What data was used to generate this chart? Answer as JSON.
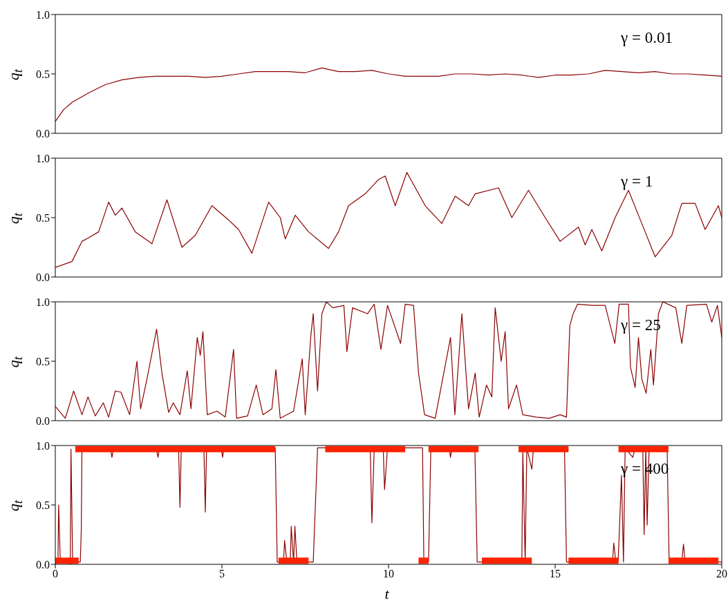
{
  "chart_data": [
    {
      "type": "line",
      "ylabel": "q$_{t}$",
      "annotations": [
        "γ = 0.01"
      ],
      "xlim": [
        0,
        20
      ],
      "xticks": [
        0,
        5,
        10,
        15,
        20
      ],
      "ylim": [
        0,
        1
      ],
      "yticks": [
        {
          "value": 0,
          "label": "0.0"
        },
        {
          "value": 0.5,
          "label": "0.5"
        },
        {
          "value": 1,
          "label": "1.0"
        }
      ],
      "tick_labels": "y",
      "x": [
        0,
        0.25,
        0.5,
        1,
        1.5,
        2,
        2.5,
        3,
        3.5,
        4,
        4.5,
        5,
        5.5,
        6,
        6.5,
        7,
        7.5,
        8,
        8.5,
        9,
        9.5,
        10,
        10.5,
        11,
        11.5,
        12,
        12.5,
        13,
        13.5,
        14,
        14.5,
        15,
        15.5,
        16,
        16.5,
        17,
        17.5,
        18,
        18.5,
        19,
        19.5,
        20
      ],
      "series": [
        {
          "color": "#8b0000",
          "values": [
            0.1,
            0.2,
            0.26,
            0.34,
            0.41,
            0.45,
            0.47,
            0.48,
            0.48,
            0.48,
            0.47,
            0.48,
            0.5,
            0.52,
            0.52,
            0.52,
            0.51,
            0.55,
            0.52,
            0.52,
            0.53,
            0.5,
            0.48,
            0.48,
            0.48,
            0.5,
            0.5,
            0.49,
            0.5,
            0.49,
            0.47,
            0.49,
            0.49,
            0.5,
            0.53,
            0.52,
            0.51,
            0.52,
            0.5,
            0.5,
            0.49,
            0.48
          ]
        }
      ]
    },
    {
      "type": "line",
      "ylabel": "q$_{t}$",
      "annotations": [
        "γ = 1"
      ],
      "xlim": [
        0,
        20
      ],
      "xticks": [
        0,
        5,
        10,
        15,
        20
      ],
      "ylim": [
        0,
        1
      ],
      "yticks": [
        {
          "value": 0,
          "label": "0.0"
        },
        {
          "value": 0.5,
          "label": "0.5"
        },
        {
          "value": 1,
          "label": "1.0"
        }
      ],
      "tick_labels": "y",
      "x": [
        0,
        0.5,
        0.8,
        1,
        1.3,
        1.6,
        1.8,
        2.0,
        2.4,
        2.9,
        3.35,
        3.8,
        4.2,
        4.7,
        5.2,
        5.5,
        5.9,
        6.4,
        6.75,
        6.9,
        7.2,
        7.6,
        8.2,
        8.5,
        8.8,
        9.3,
        9.7,
        9.9,
        10.2,
        10.55,
        11.1,
        11.6,
        12,
        12.4,
        12.6,
        13.3,
        13.7,
        14.2,
        14.7,
        15.15,
        15.7,
        15.9,
        16.1,
        16.4,
        16.8,
        17.2,
        17.6,
        18,
        18.5,
        18.8,
        19.2,
        19.5,
        19.9,
        20
      ],
      "series": [
        {
          "color": "#8b0000",
          "values": [
            0.08,
            0.13,
            0.3,
            0.33,
            0.38,
            0.63,
            0.52,
            0.58,
            0.38,
            0.28,
            0.65,
            0.25,
            0.35,
            0.6,
            0.48,
            0.4,
            0.2,
            0.63,
            0.5,
            0.32,
            0.52,
            0.38,
            0.24,
            0.38,
            0.6,
            0.7,
            0.82,
            0.85,
            0.6,
            0.88,
            0.6,
            0.45,
            0.68,
            0.6,
            0.7,
            0.75,
            0.5,
            0.73,
            0.5,
            0.3,
            0.42,
            0.27,
            0.4,
            0.22,
            0.5,
            0.73,
            0.45,
            0.17,
            0.35,
            0.62,
            0.62,
            0.4,
            0.6,
            0.5
          ]
        }
      ]
    },
    {
      "type": "line",
      "ylabel": "q$_{t}$",
      "annotations": [
        "γ = 25"
      ],
      "xlim": [
        0,
        20
      ],
      "xticks": [
        0,
        5,
        10,
        15,
        20
      ],
      "ylim": [
        0,
        1
      ],
      "yticks": [
        {
          "value": 0,
          "label": "0.0"
        },
        {
          "value": 0.5,
          "label": "0.5"
        },
        {
          "value": 1,
          "label": "1.0"
        }
      ],
      "tick_labels": "y",
      "x": [
        0,
        0.3,
        0.55,
        0.8,
        0.98,
        1.2,
        1.44,
        1.6,
        1.8,
        1.97,
        2.23,
        2.45,
        2.56,
        2.75,
        3.04,
        3.2,
        3.4,
        3.54,
        3.74,
        3.96,
        4.07,
        4.26,
        4.35,
        4.43,
        4.56,
        4.85,
        5.1,
        5.35,
        5.44,
        5.77,
        6.03,
        6.23,
        6.5,
        6.62,
        6.75,
        7.15,
        7.41,
        7.5,
        7.67,
        7.74,
        7.87,
        8,
        8.13,
        8.33,
        8.66,
        8.75,
        8.92,
        9.37,
        9.57,
        9.77,
        9.97,
        10.36,
        10.5,
        10.75,
        10.9,
        11.08,
        11.4,
        11.86,
        11.99,
        12.2,
        12.4,
        12.6,
        12.72,
        12.94,
        13.1,
        13.2,
        13.38,
        13.5,
        13.6,
        13.84,
        14.03,
        14.43,
        14.82,
        15.15,
        15.34,
        15.44,
        15.54,
        15.67,
        16.13,
        16.5,
        16.79,
        16.92,
        17.2,
        17.26,
        17.4,
        17.5,
        17.6,
        17.73,
        17.87,
        17.95,
        18.1,
        18.23,
        18.62,
        18.8,
        18.95,
        19.54,
        19.7,
        19.87,
        20
      ],
      "series": [
        {
          "color": "#8b0000",
          "values": [
            0.12,
            0.02,
            0.25,
            0.05,
            0.2,
            0.04,
            0.15,
            0.03,
            0.25,
            0.24,
            0.05,
            0.5,
            0.1,
            0.35,
            0.77,
            0.4,
            0.07,
            0.15,
            0.05,
            0.42,
            0.1,
            0.7,
            0.55,
            0.75,
            0.05,
            0.08,
            0.03,
            0.6,
            0.02,
            0.04,
            0.3,
            0.05,
            0.1,
            0.43,
            0.02,
            0.08,
            0.52,
            0.05,
            0.72,
            0.9,
            0.25,
            0.9,
            1.0,
            0.95,
            0.97,
            0.58,
            0.95,
            0.9,
            0.98,
            0.6,
            0.97,
            0.65,
            0.98,
            0.97,
            0.4,
            0.05,
            0.02,
            0.7,
            0.05,
            0.9,
            0.1,
            0.4,
            0.03,
            0.3,
            0.2,
            0.95,
            0.5,
            0.75,
            0.1,
            0.3,
            0.05,
            0.03,
            0.02,
            0.05,
            0.03,
            0.8,
            0.9,
            0.98,
            0.97,
            0.97,
            0.65,
            0.98,
            0.98,
            0.45,
            0.28,
            0.7,
            0.35,
            0.23,
            0.6,
            0.3,
            0.9,
            1.0,
            0.95,
            0.65,
            0.97,
            0.98,
            0.83,
            0.97,
            0.7
          ]
        }
      ]
    },
    {
      "type": "line",
      "ylabel": "q$_{t}$",
      "xlabel": "t",
      "annotations": [
        "γ = 400"
      ],
      "xlim": [
        0,
        20
      ],
      "xticks": [
        0,
        5,
        10,
        15,
        20
      ],
      "ylim": [
        0,
        1
      ],
      "yticks": [
        {
          "value": 0,
          "label": "0.0"
        },
        {
          "value": 0.5,
          "label": "0.5"
        },
        {
          "value": 1,
          "label": "1.0"
        }
      ],
      "x": [
        0,
        0.08,
        0.1,
        0.15,
        0.42,
        0.45,
        0.47,
        0.52,
        0.75,
        0.78,
        0.8,
        1.65,
        1.7,
        1.75,
        3.03,
        3.08,
        3.13,
        3.7,
        3.74,
        3.78,
        4.46,
        4.5,
        4.54,
        4.98,
        5.02,
        5.06,
        6.6,
        6.66,
        6.85,
        6.88,
        6.95,
        7.05,
        7.08,
        7.15,
        7.19,
        7.25,
        7.74,
        7.87,
        9.45,
        9.5,
        9.57,
        9.84,
        9.88,
        9.97,
        11.02,
        11.06,
        11.2,
        11.27,
        11.82,
        11.86,
        11.9,
        12.59,
        12.66,
        14.0,
        14.03,
        14.1,
        14.15,
        14.3,
        14.35,
        15.28,
        15.34,
        16.72,
        16.76,
        16.82,
        16.89,
        16.99,
        17.05,
        17.1,
        17.33,
        17.4,
        17.63,
        17.67,
        17.72,
        17.76,
        17.82,
        17.9,
        18.36,
        18.42,
        18.8,
        18.85,
        18.9,
        18.95,
        20
      ],
      "series": [
        {
          "color": "#8b0000",
          "values": [
            0.02,
            0.02,
            0.5,
            0.02,
            0.02,
            0.0,
            0.97,
            0.02,
            0.02,
            0.3,
            0.98,
            0.98,
            0.9,
            0.98,
            0.98,
            0.9,
            0.98,
            0.98,
            0.48,
            0.98,
            0.98,
            0.44,
            0.98,
            0.98,
            0.9,
            0.98,
            0.98,
            0.02,
            0.02,
            0.2,
            0.02,
            0.02,
            0.32,
            0.02,
            0.32,
            0.02,
            0.02,
            0.98,
            0.98,
            0.35,
            0.98,
            0.98,
            0.63,
            0.98,
            0.98,
            0.02,
            0.02,
            0.98,
            0.98,
            0.9,
            0.98,
            0.98,
            0.02,
            0.02,
            0.95,
            0.02,
            0.98,
            0.8,
            0.98,
            0.98,
            0.02,
            0.02,
            0.18,
            0.02,
            0.02,
            0.75,
            0.02,
            0.98,
            0.9,
            0.98,
            0.98,
            0.25,
            0.98,
            0.33,
            0.98,
            0.98,
            0.98,
            0.02,
            0.02,
            0.17,
            0.02,
            0.02,
            0.02
          ]
        },
        {
          "color": "#ff2200",
          "x": [
            0,
            0.7,
            null,
            0.6,
            6.6,
            null,
            6.7,
            7.6,
            null,
            8.1,
            10.5,
            null,
            10.9,
            11.2,
            null,
            11.2,
            12.7,
            null,
            12.8,
            14.3,
            null,
            13.9,
            15.4,
            null,
            15.4,
            16.9,
            null,
            16.9,
            18.4,
            null,
            18.4,
            19.9
          ],
          "values": [
            0.03,
            0.03,
            null,
            0.97,
            0.97,
            null,
            0.03,
            0.03,
            null,
            0.97,
            0.97,
            null,
            0.03,
            0.03,
            null,
            0.97,
            0.97,
            null,
            0.03,
            0.03,
            null,
            0.97,
            0.97,
            null,
            0.03,
            0.03,
            null,
            0.97,
            0.97,
            null,
            0.03,
            0.03
          ]
        }
      ]
    }
  ]
}
